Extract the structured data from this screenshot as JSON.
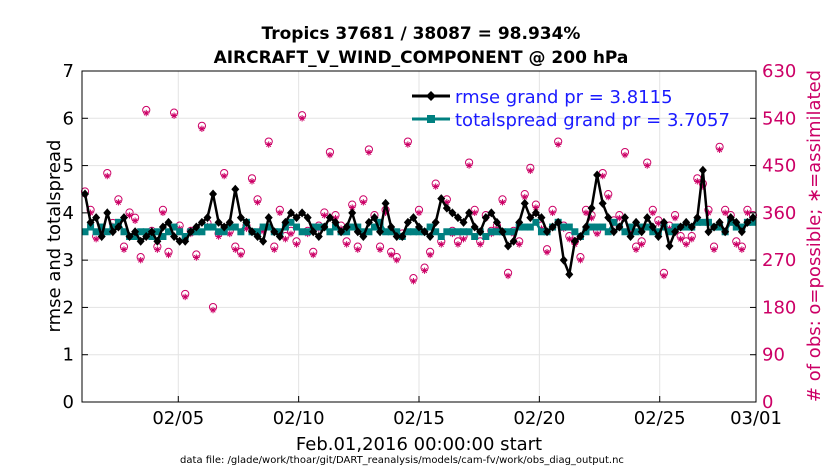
{
  "chart_data": {
    "type": "line",
    "title_line1": "Tropics 37681 / 38087 = 98.934%",
    "title_line2": "AIRCRAFT_V_WIND_COMPONENT @ 200 hPa",
    "ylabel_left": "rmse and totalspread",
    "ylabel_right": "# of obs: o=possible; ∗=assimilated",
    "xlabel": "Feb.01,2016 00:00:00 start",
    "footer": "data file: /glade/work/thoar/git/DART_reanalysis/models/cam-fv/work/obs_diag_output.nc",
    "ylim_left": [
      0,
      7
    ],
    "ylim_right": [
      0,
      630
    ],
    "xlim_days": [
      1,
      29
    ],
    "left_ticks": [
      "0",
      "1",
      "2",
      "3",
      "4",
      "5",
      "6",
      "7"
    ],
    "right_ticks": [
      "0",
      "90",
      "180",
      "270",
      "360",
      "450",
      "540",
      "630"
    ],
    "x_ticks": [
      {
        "day": 5,
        "label": "02/05"
      },
      {
        "day": 10,
        "label": "02/10"
      },
      {
        "day": 15,
        "label": "02/15"
      },
      {
        "day": 20,
        "label": "02/20"
      },
      {
        "day": 25,
        "label": "02/25"
      },
      {
        "day": 29,
        "label": "03/01"
      }
    ],
    "colors": {
      "rmse": "#000000",
      "spread": "#008080",
      "obs": "#cc0066",
      "legend_text": "#1a1aff"
    },
    "series": [
      {
        "name": "rmse grand pr = 3.8115",
        "values": [
          4.4,
          3.8,
          3.9,
          3.5,
          4.0,
          3.6,
          3.7,
          3.9,
          3.5,
          3.6,
          3.4,
          3.5,
          3.6,
          3.4,
          3.7,
          3.8,
          3.5,
          3.4,
          3.4,
          3.6,
          3.7,
          3.8,
          3.9,
          4.4,
          3.8,
          3.7,
          3.8,
          4.5,
          3.9,
          3.8,
          3.6,
          3.5,
          3.4,
          3.9,
          3.6,
          3.5,
          3.8,
          4.0,
          3.9,
          4.0,
          3.9,
          3.6,
          3.5,
          3.7,
          3.9,
          3.8,
          3.6,
          3.7,
          4.0,
          3.6,
          3.5,
          3.8,
          3.9,
          3.6,
          4.2,
          3.7,
          3.5,
          3.5,
          3.8,
          3.9,
          3.7,
          3.6,
          3.5,
          3.8,
          4.3,
          4.1,
          4.0,
          3.9,
          3.8,
          4.0,
          3.7,
          3.6,
          3.9,
          4.0,
          3.8,
          3.6,
          3.3,
          3.4,
          3.8,
          4.2,
          3.9,
          4.0,
          3.9,
          3.6,
          3.7,
          3.8,
          3.0,
          2.7,
          3.4,
          3.5,
          3.7,
          4.1,
          4.8,
          4.2,
          3.9,
          3.6,
          3.7,
          3.9,
          3.5,
          3.8,
          3.6,
          3.9,
          3.7,
          3.5,
          3.8,
          3.3,
          3.6,
          3.7,
          3.8,
          3.7,
          3.9,
          4.9,
          3.6,
          3.7,
          3.8,
          3.6,
          3.9,
          3.8,
          3.6,
          3.8,
          3.9
        ]
      },
      {
        "name": "totalspread grand pr = 3.7057",
        "values": [
          3.6,
          3.7,
          3.6,
          3.7,
          3.6,
          3.7,
          3.8,
          3.6,
          3.5,
          3.5,
          3.6,
          3.6,
          3.5,
          3.6,
          3.5,
          3.6,
          3.7,
          3.6,
          3.5,
          3.6,
          3.6,
          3.6,
          3.7,
          3.7,
          3.6,
          3.6,
          3.7,
          3.7,
          3.6,
          3.8,
          3.6,
          3.6,
          3.7,
          3.7,
          3.6,
          3.6,
          3.7,
          3.8,
          3.7,
          3.6,
          3.6,
          3.7,
          3.7,
          3.7,
          3.6,
          3.7,
          3.6,
          3.6,
          3.7,
          3.7,
          3.6,
          3.6,
          3.7,
          3.8,
          3.6,
          3.6,
          3.6,
          3.5,
          3.6,
          3.6,
          3.6,
          3.6,
          3.7,
          3.6,
          3.5,
          3.6,
          3.6,
          3.6,
          3.6,
          3.6,
          3.5,
          3.6,
          3.5,
          3.6,
          3.6,
          3.6,
          3.6,
          3.6,
          3.7,
          3.7,
          3.7,
          3.8,
          3.6,
          3.6,
          3.7,
          3.8,
          3.7,
          3.7,
          3.6,
          3.5,
          3.6,
          3.7,
          3.7,
          3.7,
          3.6,
          3.8,
          3.7,
          3.6,
          3.7,
          3.6,
          3.7,
          3.7,
          3.6,
          3.6,
          3.7,
          3.6,
          3.7,
          3.7,
          3.7,
          3.7,
          3.8,
          3.8,
          3.8,
          3.7,
          3.7,
          3.6,
          3.8,
          3.7,
          3.7,
          3.8,
          3.8
        ]
      },
      {
        "name": "# of obs",
        "values": [
          395,
          360,
          310,
          320,
          430,
          335,
          380,
          290,
          355,
          345,
          270,
          550,
          320,
          290,
          360,
          280,
          545,
          330,
          200,
          320,
          275,
          520,
          335,
          175,
          315,
          430,
          320,
          290,
          280,
          330,
          420,
          380,
          325,
          490,
          290,
          360,
          310,
          320,
          300,
          540,
          320,
          280,
          330,
          355,
          470,
          350,
          330,
          300,
          370,
          290,
          380,
          475,
          350,
          290,
          360,
          280,
          270,
          315,
          490,
          230,
          360,
          250,
          280,
          410,
          300,
          380,
          320,
          300,
          310,
          450,
          360,
          300,
          350,
          320,
          330,
          380,
          240,
          320,
          300,
          390,
          440,
          370,
          330,
          285,
          360,
          490,
          330,
          310,
          300,
          270,
          360,
          350,
          320,
          430,
          390,
          340,
          350,
          470,
          320,
          290,
          300,
          450,
          360,
          340,
          240,
          330,
          350,
          310,
          300,
          310,
          420,
          410,
          360,
          290,
          480,
          360,
          350,
          300,
          290,
          360,
          350
        ]
      }
    ],
    "legend": [
      {
        "label": "rmse grand pr = 3.8115",
        "series": "rmse"
      },
      {
        "label": "totalspread grand pr = 3.7057",
        "series": "spread"
      }
    ]
  }
}
